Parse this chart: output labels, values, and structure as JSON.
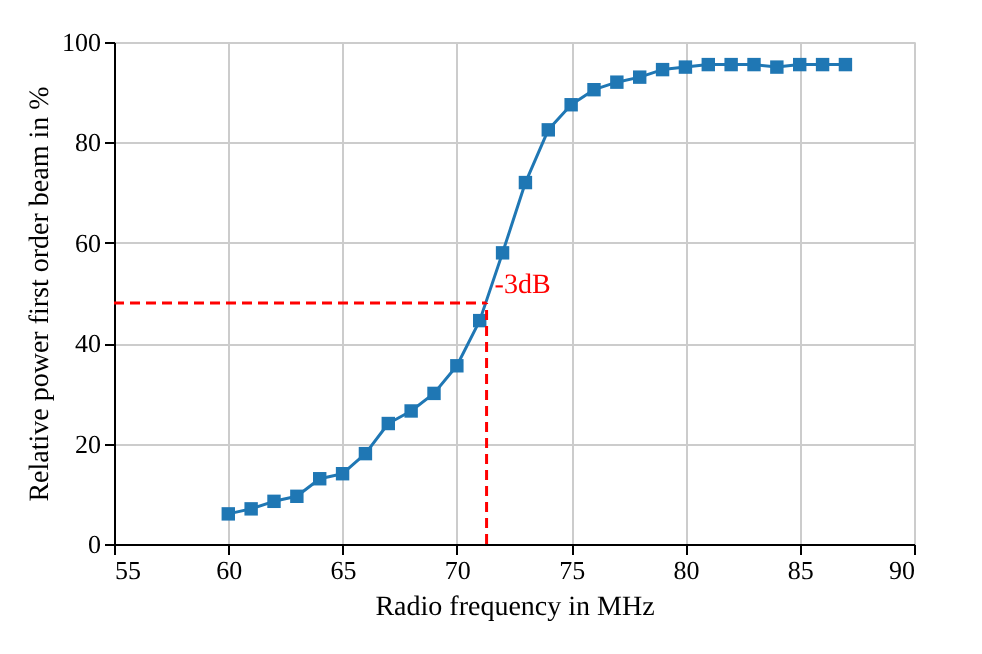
{
  "chart_data": {
    "type": "line",
    "xlabel": "Radio frequency in MHz",
    "ylabel": "Relative power first order beam in %",
    "x": [
      60,
      61,
      62,
      63,
      64,
      65,
      66,
      67,
      68,
      69,
      70,
      71,
      72,
      73,
      74,
      75,
      76,
      77,
      78,
      79,
      80,
      81,
      82,
      83,
      84,
      85,
      86,
      87
    ],
    "series": [
      {
        "color": "#1f77b4",
        "values": [
          6,
          7,
          8.5,
          9.5,
          13,
          14,
          18,
          24,
          26.5,
          30,
          35.5,
          44.5,
          58,
          72,
          82.5,
          87.5,
          90.5,
          92,
          93,
          94.5,
          95,
          95.5,
          95.5,
          95.5,
          95,
          95.5,
          95.5,
          95.5
        ]
      }
    ],
    "xlim": [
      55,
      90
    ],
    "xticks": [
      55,
      60,
      65,
      70,
      75,
      80,
      85,
      90
    ],
    "ylim": [
      0,
      100
    ],
    "yticks": [
      0,
      20,
      40,
      60,
      80,
      100
    ],
    "grid": true,
    "marker": "square",
    "line_style": "solid",
    "ref_lines": [
      {
        "axis": "y",
        "value": 48,
        "label": "-3dB",
        "color": "#ff0000",
        "line_style": "dashed"
      },
      {
        "axis": "x",
        "value": 71.3,
        "color": "#ff0000",
        "line_style": "dashed"
      }
    ]
  }
}
